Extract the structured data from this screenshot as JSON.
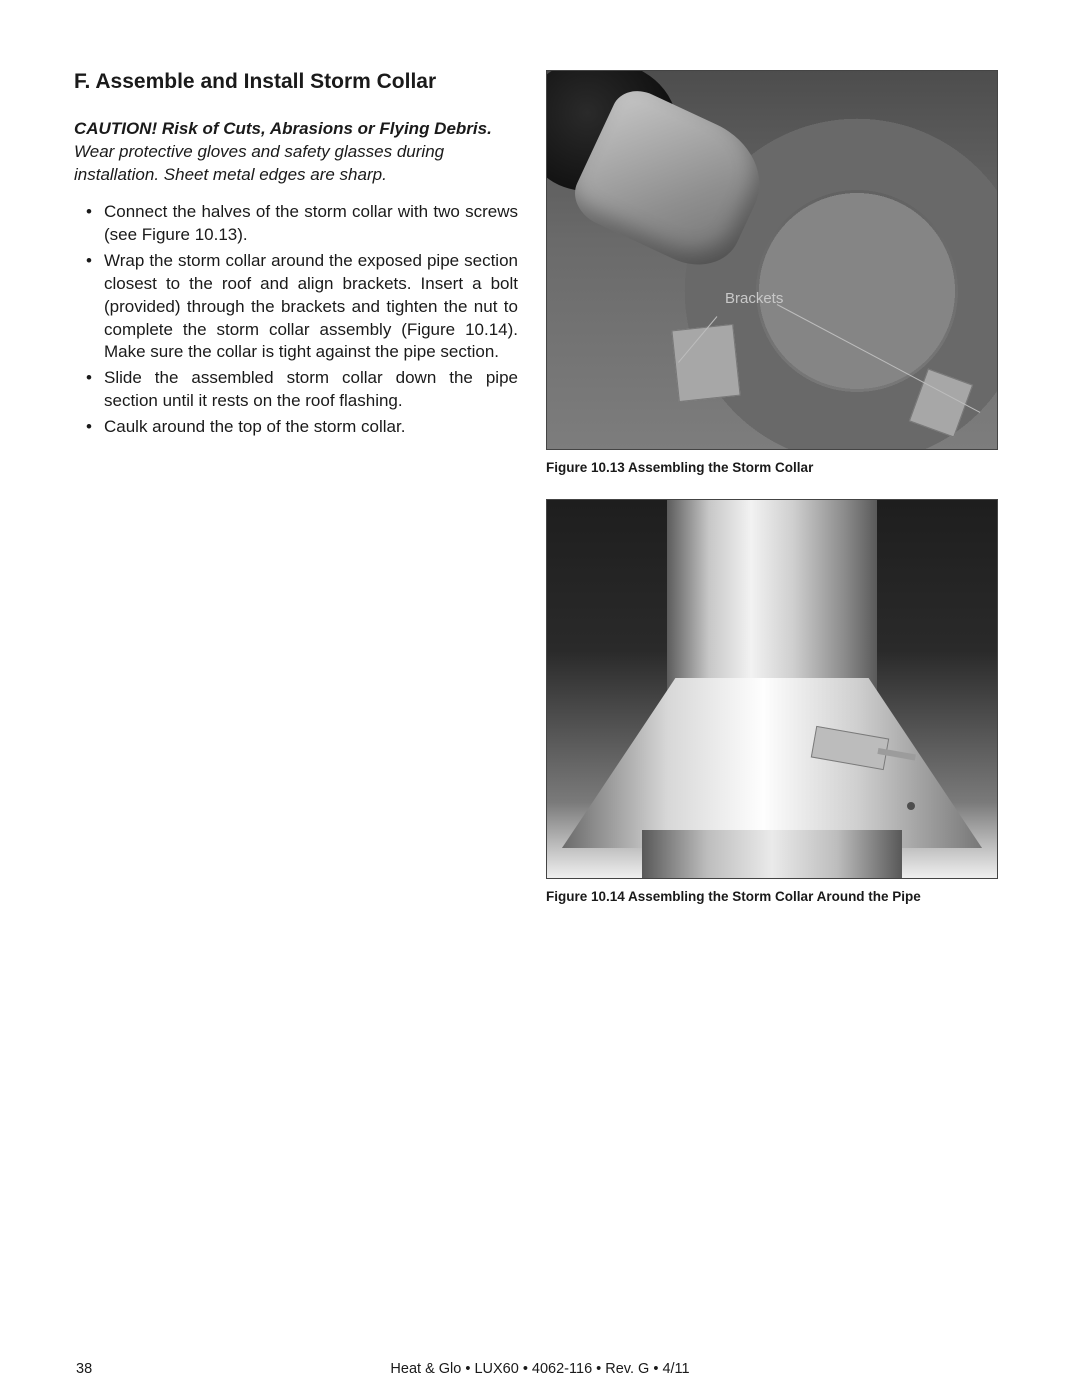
{
  "section": {
    "title": "F.  Assemble and Install Storm Collar"
  },
  "caution": {
    "lead": "CAUTION! Risk of Cuts, Abrasions or Flying Debris.",
    "body": " Wear protective gloves and safety glasses during installation. Sheet metal edges are sharp."
  },
  "bullets": [
    "Connect the halves of the storm collar with two screws (see Figure 10.13).",
    "Wrap the storm collar around the exposed pipe section closest to the roof and align brackets. Insert a bolt (provided) through the brackets and tighten the nut to complete the storm collar assembly (Figure 10.14). Make sure the collar is tight against the pipe section.",
    "Slide the assembled storm collar down the pipe section until it rests on the roof flashing.",
    "Caulk around the top of the storm collar."
  ],
  "figure1": {
    "annotation": "Brackets",
    "caption": "Figure 10.13  Assembling the Storm Collar"
  },
  "figure2": {
    "caption": "Figure 10.14  Assembling the Storm Collar Around the Pipe"
  },
  "footer": {
    "page": "38",
    "text": "Heat & Glo • LUX60 • 4062-116 • Rev. G • 4/11"
  }
}
